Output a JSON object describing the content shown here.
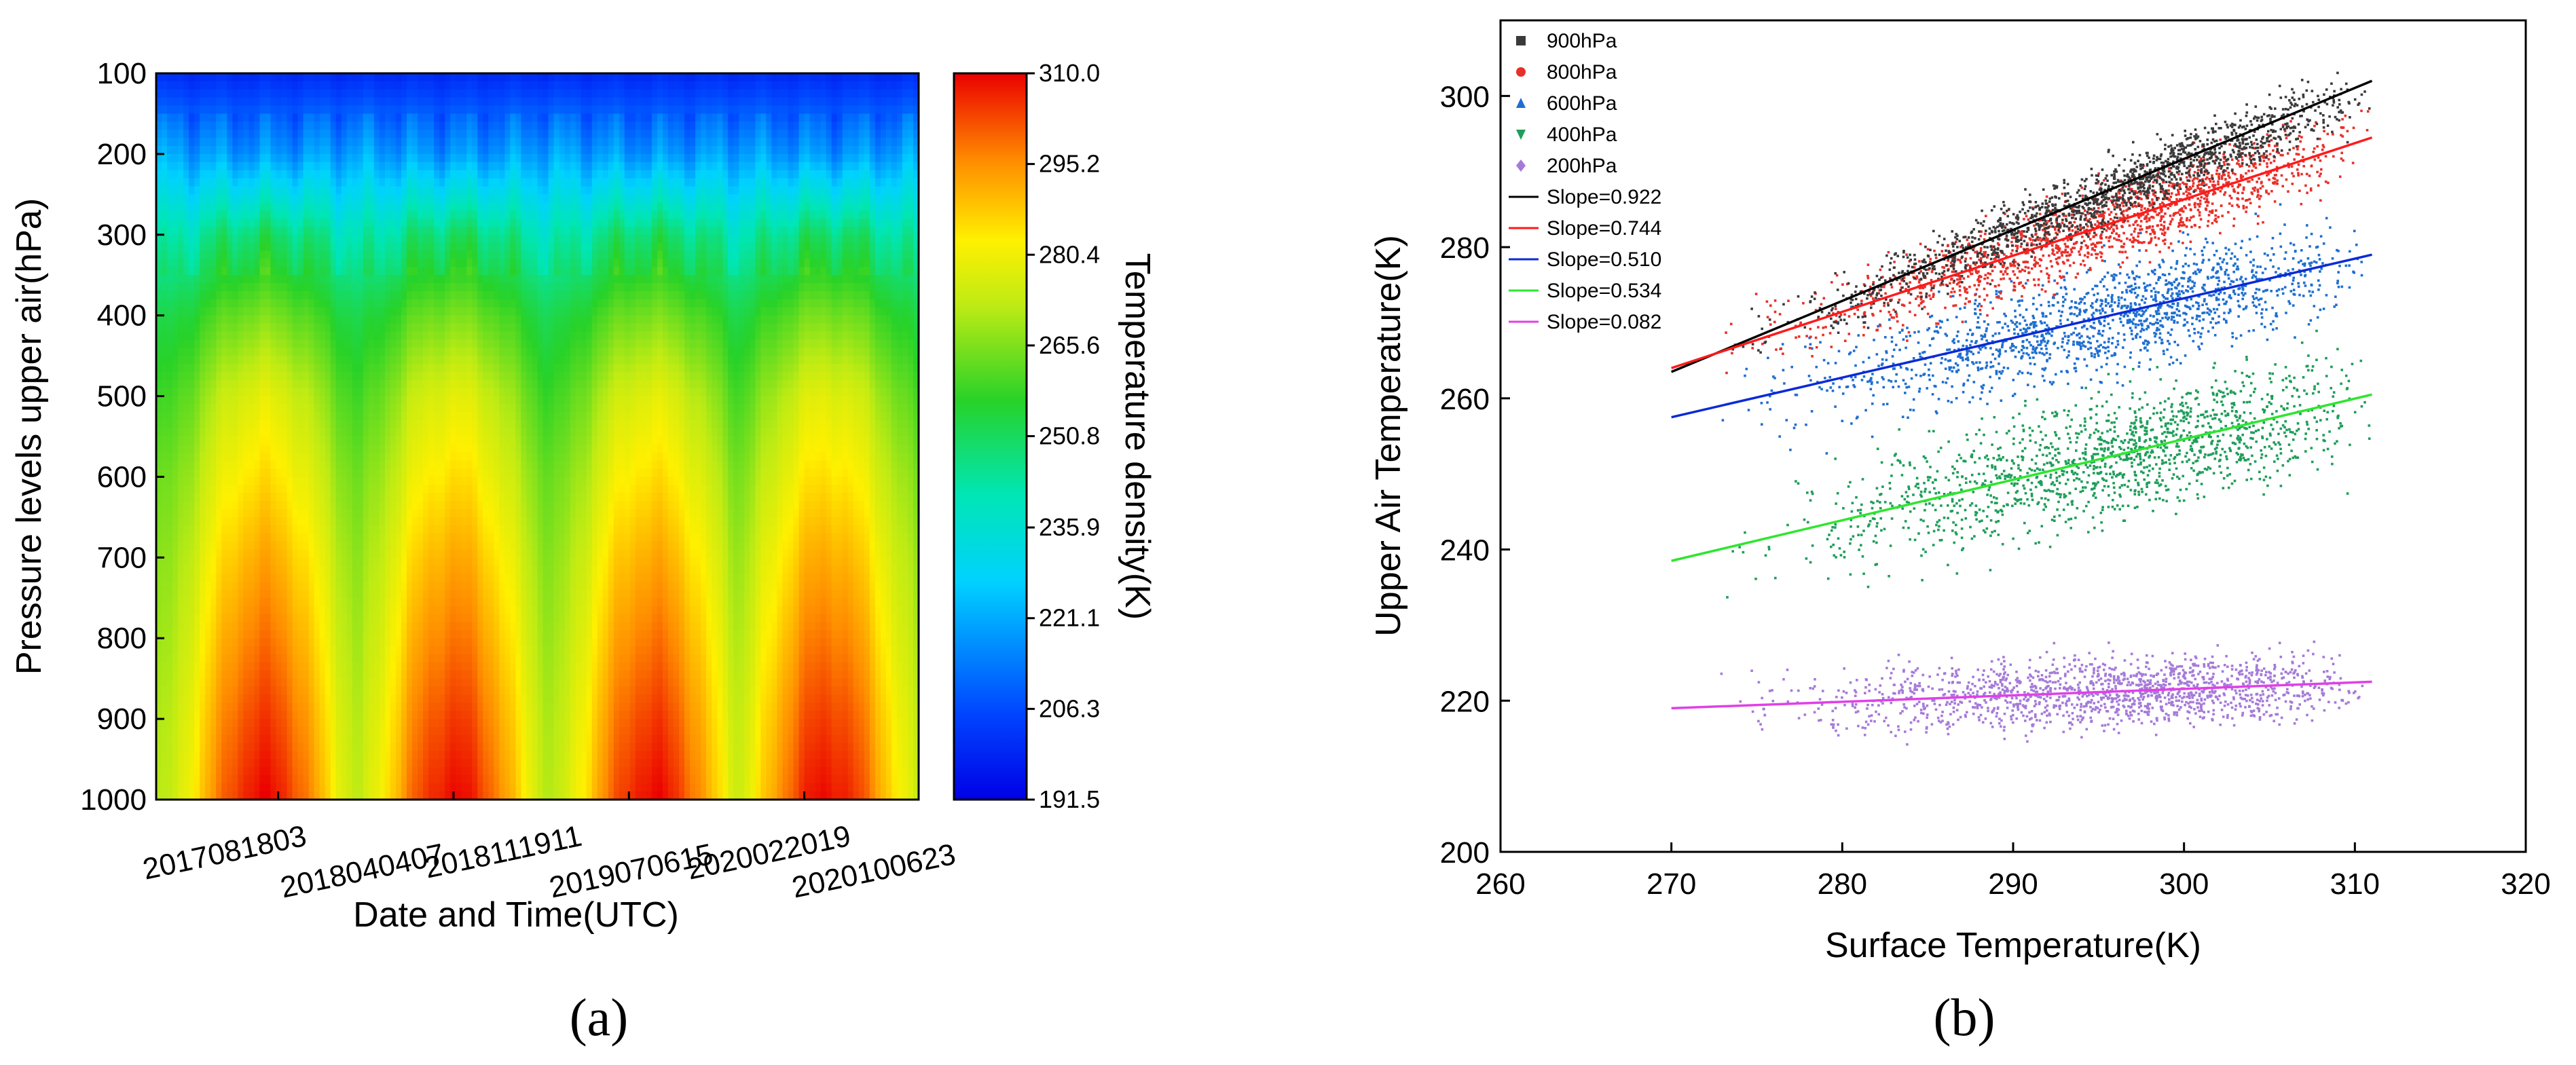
{
  "chart_data": [
    {
      "panel": "(a)",
      "type": "heatmap",
      "xlabel": "Date and Time(UTC)",
      "ylabel": "Pressure levels upper air(hPa)",
      "x_ticks": [
        "2017081803",
        "2018040407",
        "2018111911",
        "2019070615",
        "2020022019",
        "2020100623"
      ],
      "y_ticks": [
        100,
        200,
        300,
        400,
        500,
        600,
        700,
        800,
        900,
        1000
      ],
      "ylim": [
        1000,
        100
      ],
      "colorbar": {
        "label": "Temperature density(K)",
        "ticks": [
          310.0,
          295.2,
          280.4,
          265.6,
          250.8,
          235.9,
          221.1,
          206.3,
          191.5
        ],
        "range": [
          191.5,
          310.0
        ]
      },
      "cycles": 4,
      "summer_peak_time_fraction": [
        0.14,
        0.39,
        0.65,
        0.88
      ],
      "temperature_profile": {
        "levels_hPa": [
          100,
          200,
          300,
          400,
          500,
          600,
          700,
          800,
          900,
          1000
        ],
        "winter_K": [
          200,
          220,
          240,
          252,
          258,
          263,
          266,
          268,
          270,
          271
        ],
        "summer_K": [
          200,
          218,
          250,
          265,
          278,
          285,
          292,
          298,
          304,
          309
        ]
      }
    },
    {
      "panel": "(b)",
      "type": "scatter",
      "xlabel": "Surface Temperature(K)",
      "ylabel": "Upper Air Temperature(K)",
      "xlim": [
        260,
        320
      ],
      "ylim": [
        200,
        310
      ],
      "x_ticks": [
        260,
        270,
        280,
        290,
        300,
        310,
        320
      ],
      "y_ticks": [
        200,
        220,
        240,
        260,
        280,
        300
      ],
      "series": [
        {
          "name": "900hPa",
          "marker": "square",
          "color": "#3a3a3a",
          "slope_label": "Slope=0.922",
          "line_color": "#000000",
          "slope": 0.922,
          "fit_start": [
            270,
            263.5
          ],
          "fit_end": [
            311,
            302
          ],
          "scatter_x_range": [
            270,
            311
          ],
          "scatter_spread_K": 3.5
        },
        {
          "name": "800hPa",
          "marker": "circle",
          "color": "#e8302a",
          "slope_label": "Slope=0.744",
          "line_color": "#ff1a1a",
          "slope": 0.744,
          "fit_start": [
            270,
            264
          ],
          "fit_end": [
            311,
            294.5
          ],
          "scatter_x_range": [
            270,
            311
          ],
          "scatter_spread_K": 4.5
        },
        {
          "name": "600hPa",
          "marker": "triangle-up",
          "color": "#1f6fd1",
          "slope_label": "Slope=0.510",
          "line_color": "#0a2ad6",
          "slope": 0.51,
          "fit_start": [
            270,
            257.5
          ],
          "fit_end": [
            311,
            279
          ],
          "scatter_x_range": [
            270,
            311
          ],
          "scatter_spread_K": 6
        },
        {
          "name": "400hPa",
          "marker": "triangle-down",
          "color": "#1e9e5a",
          "slope_label": "Slope=0.534",
          "line_color": "#2ee62e",
          "slope": 0.534,
          "fit_start": [
            270,
            238.5
          ],
          "fit_end": [
            311,
            260.5
          ],
          "scatter_x_range": [
            270,
            311
          ],
          "scatter_spread_K": 7
        },
        {
          "name": "200hPa",
          "marker": "diamond",
          "color": "#a57ad8",
          "slope_label": "Slope=0.082",
          "line_color": "#e040e6",
          "slope": 0.082,
          "fit_start": [
            270,
            219
          ],
          "fit_end": [
            311,
            222.5
          ],
          "scatter_x_range": [
            270,
            311
          ],
          "scatter_spread_K": 4
        }
      ]
    }
  ],
  "labels": {
    "panel_a": "(a)",
    "panel_b": "(b)"
  }
}
